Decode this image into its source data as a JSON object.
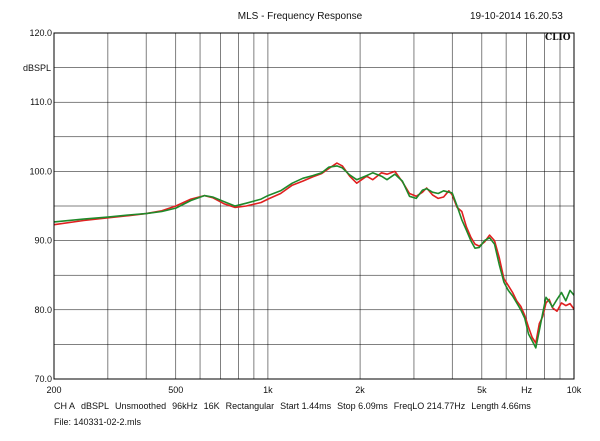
{
  "header": {
    "title": "MLS - Frequency Response",
    "timestamp": "19-10-2014 16.20.53",
    "brand": "CLIO"
  },
  "footer": {
    "params": [
      "CH A",
      "dBSPL",
      "Unsmoothed",
      "96kHz",
      "16K",
      "Rectangular",
      "Start 1.44ms",
      "Stop 6.09ms",
      "FreqLO 214.77Hz",
      "Length 4.66ms"
    ],
    "file": "File: 140331-02-2.mls"
  },
  "chart_data": {
    "type": "line",
    "title": "MLS - Frequency Response",
    "ylabel": "dBSPL",
    "xlabel": "Hz",
    "x_scale": "log",
    "xlim": [
      200,
      10000
    ],
    "ylim": [
      70,
      120
    ],
    "grid": true,
    "x_ticks": [
      {
        "value": 200,
        "label": "200"
      },
      {
        "value": 500,
        "label": "500"
      },
      {
        "value": 1000,
        "label": "1k"
      },
      {
        "value": 2000,
        "label": "2k"
      },
      {
        "value": 5000,
        "label": "5k"
      },
      {
        "value": 7000,
        "label": "Hz"
      },
      {
        "value": 10000,
        "label": "10k"
      }
    ],
    "y_ticks": [
      {
        "value": 70,
        "label": "70.0"
      },
      {
        "value": 80,
        "label": "80.0"
      },
      {
        "value": 90,
        "label": "90.0"
      },
      {
        "value": 100,
        "label": "100.0"
      },
      {
        "value": 110,
        "label": "110.0"
      },
      {
        "value": 120,
        "label": "120.0"
      }
    ],
    "series": [
      {
        "color": "#e02020",
        "points": [
          [
            200,
            92.3
          ],
          [
            250,
            92.9
          ],
          [
            300,
            93.3
          ],
          [
            350,
            93.6
          ],
          [
            400,
            93.9
          ],
          [
            450,
            94.3
          ],
          [
            500,
            95.0
          ],
          [
            560,
            96.0
          ],
          [
            620,
            96.5
          ],
          [
            660,
            96.2
          ],
          [
            720,
            95.3
          ],
          [
            780,
            94.8
          ],
          [
            850,
            95.0
          ],
          [
            950,
            95.5
          ],
          [
            1000,
            96.0
          ],
          [
            1100,
            96.8
          ],
          [
            1200,
            98.0
          ],
          [
            1300,
            98.6
          ],
          [
            1400,
            99.2
          ],
          [
            1500,
            99.7
          ],
          [
            1580,
            100.4
          ],
          [
            1680,
            101.2
          ],
          [
            1750,
            100.8
          ],
          [
            1850,
            99.3
          ],
          [
            1950,
            98.3
          ],
          [
            2100,
            99.3
          ],
          [
            2200,
            98.8
          ],
          [
            2350,
            99.8
          ],
          [
            2450,
            99.6
          ],
          [
            2600,
            100.0
          ],
          [
            2750,
            98.5
          ],
          [
            2900,
            96.8
          ],
          [
            3050,
            96.4
          ],
          [
            3200,
            97.0
          ],
          [
            3300,
            97.6
          ],
          [
            3450,
            96.6
          ],
          [
            3600,
            96.1
          ],
          [
            3750,
            96.3
          ],
          [
            3900,
            97.2
          ],
          [
            4000,
            96.6
          ],
          [
            4150,
            94.8
          ],
          [
            4300,
            94.2
          ],
          [
            4450,
            92.0
          ],
          [
            4600,
            90.5
          ],
          [
            4750,
            89.5
          ],
          [
            4900,
            89.2
          ],
          [
            5100,
            89.8
          ],
          [
            5300,
            90.8
          ],
          [
            5500,
            90.0
          ],
          [
            5700,
            87.5
          ],
          [
            5900,
            84.5
          ],
          [
            6100,
            83.5
          ],
          [
            6300,
            82.5
          ],
          [
            6500,
            81.3
          ],
          [
            6700,
            80.5
          ],
          [
            6900,
            79.2
          ],
          [
            7100,
            77.5
          ],
          [
            7300,
            76.0
          ],
          [
            7500,
            75.2
          ],
          [
            7700,
            78.0
          ],
          [
            7900,
            79.0
          ],
          [
            8100,
            81.0
          ],
          [
            8300,
            81.5
          ],
          [
            8500,
            80.3
          ],
          [
            8800,
            79.8
          ],
          [
            9100,
            81.0
          ],
          [
            9400,
            80.6
          ],
          [
            9700,
            80.9
          ],
          [
            10000,
            80.1
          ]
        ]
      },
      {
        "color": "#1f8a2a",
        "points": [
          [
            200,
            92.7
          ],
          [
            250,
            93.1
          ],
          [
            300,
            93.4
          ],
          [
            350,
            93.7
          ],
          [
            400,
            93.9
          ],
          [
            450,
            94.2
          ],
          [
            500,
            94.7
          ],
          [
            560,
            95.8
          ],
          [
            620,
            96.5
          ],
          [
            660,
            96.3
          ],
          [
            720,
            95.6
          ],
          [
            780,
            95.0
          ],
          [
            850,
            95.4
          ],
          [
            950,
            96.0
          ],
          [
            1000,
            96.5
          ],
          [
            1100,
            97.2
          ],
          [
            1200,
            98.3
          ],
          [
            1300,
            99.0
          ],
          [
            1400,
            99.4
          ],
          [
            1500,
            99.8
          ],
          [
            1580,
            100.6
          ],
          [
            1680,
            100.8
          ],
          [
            1750,
            100.5
          ],
          [
            1850,
            99.5
          ],
          [
            1950,
            98.8
          ],
          [
            2100,
            99.4
          ],
          [
            2200,
            99.8
          ],
          [
            2350,
            99.3
          ],
          [
            2450,
            98.8
          ],
          [
            2600,
            99.6
          ],
          [
            2750,
            98.6
          ],
          [
            2900,
            96.4
          ],
          [
            3050,
            96.1
          ],
          [
            3200,
            97.3
          ],
          [
            3300,
            97.5
          ],
          [
            3450,
            97.0
          ],
          [
            3600,
            96.8
          ],
          [
            3750,
            97.2
          ],
          [
            3900,
            97.0
          ],
          [
            4000,
            96.9
          ],
          [
            4150,
            95.0
          ],
          [
            4300,
            93.0
          ],
          [
            4450,
            91.5
          ],
          [
            4600,
            90.0
          ],
          [
            4750,
            88.9
          ],
          [
            4900,
            89.0
          ],
          [
            5100,
            90.0
          ],
          [
            5300,
            90.4
          ],
          [
            5500,
            89.5
          ],
          [
            5700,
            86.5
          ],
          [
            5900,
            84.0
          ],
          [
            6100,
            82.8
          ],
          [
            6300,
            82.0
          ],
          [
            6500,
            81.0
          ],
          [
            6700,
            80.0
          ],
          [
            6900,
            78.8
          ],
          [
            7100,
            76.5
          ],
          [
            7300,
            75.5
          ],
          [
            7500,
            74.5
          ],
          [
            7700,
            77.0
          ],
          [
            7900,
            79.5
          ],
          [
            8100,
            81.8
          ],
          [
            8300,
            81.2
          ],
          [
            8500,
            80.4
          ],
          [
            8800,
            81.5
          ],
          [
            9100,
            82.5
          ],
          [
            9400,
            81.3
          ],
          [
            9700,
            82.8
          ],
          [
            10000,
            82.1
          ]
        ]
      }
    ]
  }
}
